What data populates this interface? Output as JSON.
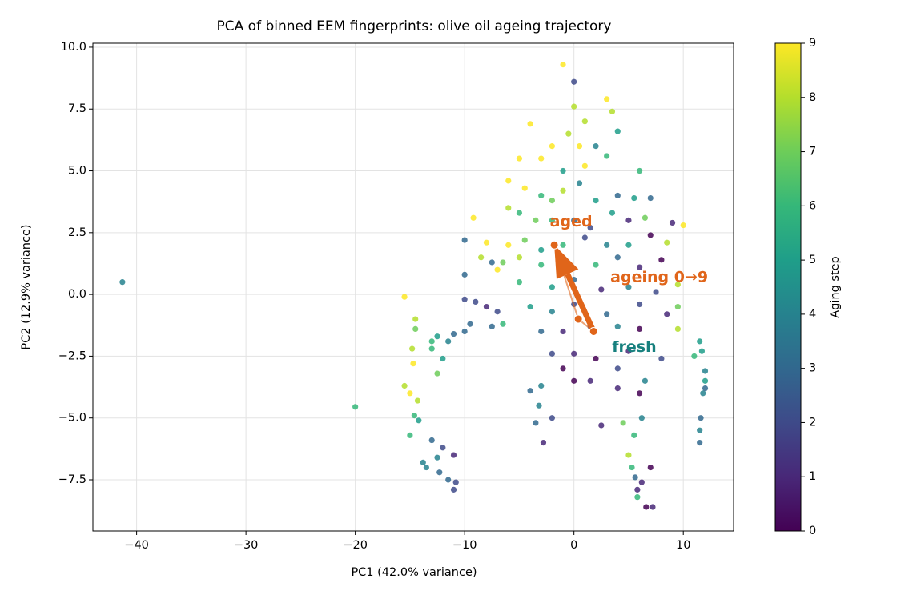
{
  "chart_data": {
    "type": "scatter",
    "title": "PCA of binned EEM fingerprints: olive oil ageing trajectory",
    "x_label": "PC1 (42.0% variance)",
    "y_label": "PC2 (12.9% variance)",
    "xlim": [
      -44,
      14.6
    ],
    "ylim": [
      -9.57,
      10.16
    ],
    "xticks": [
      {
        "value": -40,
        "label": "−40"
      },
      {
        "value": -30,
        "label": "−30"
      },
      {
        "value": -20,
        "label": "−20"
      },
      {
        "value": -10,
        "label": "−10"
      },
      0,
      10
    ],
    "yticks": [
      {
        "value": -7.5,
        "label": "−7.5"
      },
      {
        "value": -5,
        "label": "−5.0"
      },
      {
        "value": -2.5,
        "label": "−2.5"
      },
      {
        "value": 0,
        "label": "0.0"
      },
      2.5,
      {
        "value": 5,
        "label": "5.0"
      },
      7.5,
      {
        "value": 10,
        "label": "10.0"
      }
    ],
    "grid": true,
    "colormap": "viridis",
    "colorbar_label": "Aging step",
    "clim": [
      0,
      9
    ],
    "cticks": [
      0,
      1,
      2,
      3,
      4,
      5,
      6,
      7,
      8,
      9
    ],
    "series": [
      {
        "x": [
          -41.3,
          -20,
          -15.5,
          -15.5,
          -15,
          -14.8,
          -14.5,
          -14.5,
          -14.6,
          -14.2,
          -15,
          -14.3,
          -14.7,
          -13.8,
          -13.5,
          -13,
          -12.5,
          -12.3,
          -12,
          -11.5,
          -11,
          -10.8,
          -11,
          -13,
          -12.5,
          -12,
          -11.5,
          -11,
          -10,
          -10,
          -10,
          -9.5,
          -9,
          -9.2,
          -8.5,
          -8,
          -8,
          -7.5,
          -7.5,
          -7,
          -6.5,
          -7,
          -10,
          -13,
          -12.5,
          -1,
          0,
          0,
          3,
          -4,
          -2,
          1,
          -0.5,
          0.5,
          2,
          4,
          3.5,
          -5,
          -3,
          -1,
          1,
          3,
          6,
          -6,
          -4.5,
          -3,
          -2,
          -1,
          0.5,
          2,
          4,
          5.5,
          7,
          -6,
          -5,
          -3.5,
          -2,
          0,
          1.5,
          3.5,
          5,
          6.5,
          9,
          10,
          -6,
          -4.5,
          -3,
          -1,
          1,
          3,
          5,
          7,
          8.5,
          -6.5,
          -5,
          -3,
          -0.5,
          2,
          4,
          6,
          8,
          9.5,
          -5,
          -2,
          0,
          2.5,
          5,
          7.5,
          9.5,
          -4,
          -2,
          0,
          3,
          6,
          8.5,
          9.5,
          -3,
          -1,
          1.5,
          4,
          6,
          -2,
          0,
          2,
          5,
          8,
          -1,
          1.5,
          4,
          6.5,
          -3,
          -4,
          -3.2,
          0,
          4,
          6,
          -3.5,
          -2,
          -2.8,
          2.5,
          4.5,
          5,
          5.3,
          5.6,
          5.8,
          6.2,
          5.8,
          6.6,
          7.2,
          7,
          5.5,
          6.2,
          11.5,
          11.7,
          12,
          12,
          11.8,
          11.6,
          11.5,
          11.5,
          11,
          12
        ],
        "y": [
          0.5,
          -4.55,
          -0.1,
          -3.7,
          -4,
          -2.2,
          -1,
          -1.4,
          -4.9,
          -5.1,
          -5.7,
          -4.3,
          -2.8,
          -6.8,
          -7,
          -5.9,
          -6.6,
          -7.2,
          -6.2,
          -7.5,
          -7.9,
          -7.6,
          -6.5,
          -2.2,
          -1.7,
          -2.6,
          -1.9,
          -1.6,
          -1.5,
          0.8,
          -0.2,
          -1.2,
          -0.3,
          3.1,
          1.5,
          2.1,
          -0.5,
          1.3,
          -1.3,
          -0.7,
          -1.2,
          1,
          2.2,
          -1.9,
          -3.2,
          9.3,
          8.6,
          7.6,
          7.9,
          6.9,
          6,
          7,
          6.5,
          6,
          6,
          6.6,
          7.4,
          5.5,
          5.5,
          5,
          5.2,
          5.6,
          5,
          4.6,
          4.3,
          4,
          3.8,
          4.2,
          4.5,
          3.8,
          4,
          3.9,
          3.9,
          3.5,
          3.3,
          3,
          3,
          3,
          2.7,
          3.3,
          3,
          3.1,
          2.9,
          2.8,
          2,
          2.2,
          1.8,
          2,
          2.3,
          2,
          2,
          2.4,
          2.1,
          1.3,
          1.5,
          1.2,
          1,
          1.2,
          1.5,
          1.1,
          1.4,
          0.4,
          0.5,
          0.3,
          0.6,
          0.2,
          0.3,
          0.1,
          -0.5,
          -0.5,
          -0.7,
          -0.4,
          -0.8,
          -0.4,
          -0.8,
          -1.4,
          -1.5,
          -1.5,
          -1.3,
          -1.3,
          -1.4,
          -2.4,
          -2.4,
          -2.6,
          -2.3,
          -2.6,
          -3,
          -3.5,
          -3,
          -3.5,
          -3.7,
          -3.9,
          -4.5,
          -3.5,
          -3.8,
          -4,
          -5.2,
          -5,
          -6,
          -5.3,
          -5.2,
          -6.5,
          -7,
          -7.4,
          -7.9,
          -7.6,
          -8.2,
          -8.6,
          -8.6,
          -7,
          -5.7,
          -5,
          -1.9,
          -2.3,
          -3.1,
          -3.5,
          -4,
          -5,
          -5.5,
          -6,
          -2.5,
          -3.8
        ],
        "c": [
          4,
          6,
          9,
          8,
          9,
          8,
          8,
          7,
          6,
          5,
          6,
          8,
          9,
          4,
          4,
          3,
          4,
          3,
          2,
          3,
          2,
          2,
          1,
          6,
          5,
          5,
          4,
          3,
          3,
          3,
          2,
          3,
          2,
          9,
          8,
          9,
          1,
          3,
          3,
          2,
          6,
          9,
          3,
          6,
          7,
          9,
          2,
          8,
          9,
          9,
          9,
          8,
          8,
          9,
          4,
          5,
          8,
          9,
          9,
          5,
          9,
          6,
          6,
          9,
          9,
          6,
          7,
          8,
          4,
          5,
          3,
          5,
          3,
          8,
          6,
          7,
          6,
          3,
          2,
          5,
          1,
          7,
          1,
          9,
          9,
          7,
          5,
          6,
          2,
          4,
          5,
          0,
          8,
          7,
          8,
          6,
          4,
          6,
          3,
          1,
          0,
          8,
          6,
          5,
          3,
          1,
          4,
          2,
          7,
          5,
          4,
          2,
          3,
          2,
          1,
          8,
          3,
          1,
          2,
          4,
          0,
          2,
          1,
          0,
          1,
          2,
          0,
          1,
          2,
          4,
          4,
          3,
          4,
          0,
          1,
          0,
          3,
          2,
          1,
          1,
          7,
          8,
          6,
          3,
          1,
          1,
          6,
          0,
          1,
          0,
          6,
          4,
          5,
          5,
          4,
          5,
          4,
          3,
          4,
          3,
          6,
          3
        ]
      }
    ],
    "trajectory": {
      "x": [
        1.8,
        0.4,
        -1.8
      ],
      "y": [
        -1.5,
        -1.0,
        2.0
      ],
      "color": "#e0651a"
    },
    "annotations": [
      {
        "text": "fresh",
        "color": "#17807e"
      },
      {
        "text": "aged",
        "color": "#e0651a"
      },
      {
        "text": "ageing 0→9",
        "color": "#e0651a"
      }
    ]
  }
}
